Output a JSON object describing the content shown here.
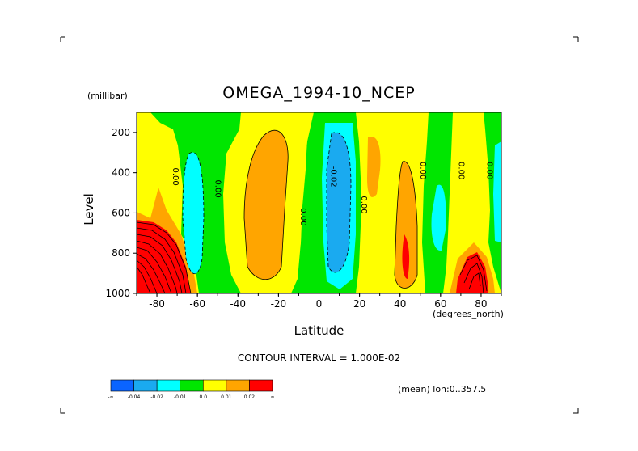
{
  "chart_data": {
    "type": "contour",
    "title": "OMEGA_1994-10_NCEP",
    "xlabel": "Latitude",
    "x_unit": "(degrees_north)",
    "ylabel": "Level",
    "y_unit": "(millibar)",
    "xlim": [
      -90,
      90
    ],
    "ylim": [
      1000,
      100
    ],
    "x_ticks": [
      -80,
      -60,
      -40,
      -20,
      0,
      20,
      40,
      60,
      80
    ],
    "y_ticks": [
      200,
      400,
      600,
      800,
      1000
    ],
    "contour_interval_text": "CONTOUR INTERVAL = 1.000E-02",
    "contour_labels": [
      {
        "text": "0.00",
        "lat": -72,
        "level": 420
      },
      {
        "text": "0.00",
        "lat": -51,
        "level": 480
      },
      {
        "text": "0.00",
        "lat": -9,
        "level": 620
      },
      {
        "text": "-0.02",
        "lat": 6,
        "level": 420
      },
      {
        "text": "0.00",
        "lat": 21,
        "level": 560
      },
      {
        "text": "0.00",
        "lat": 50,
        "level": 390
      },
      {
        "text": "0.00",
        "lat": 69,
        "level": 390
      },
      {
        "text": "0.00",
        "lat": 83,
        "level": 390
      }
    ],
    "colorbar": {
      "colors": [
        "#0a64ff",
        "#1aaaf0",
        "#00ffff",
        "#00e600",
        "#ffff00",
        "#ffa500",
        "#ff0000"
      ],
      "labels": [
        "-∞",
        "-0.04",
        "-0.02",
        "-0.01",
        "0.0",
        "0.01",
        "0.02",
        "∞"
      ]
    },
    "colors": {
      "neg3": "#0a64ff",
      "neg2": "#1aaaf0",
      "neg1": "#00ffff",
      "zero": "#00e600",
      "pos1": "#ffff00",
      "pos2": "#ffa500",
      "pos3": "#ff0000"
    }
  },
  "footer": {
    "mean_text": "(mean) lon:0..357.5"
  }
}
